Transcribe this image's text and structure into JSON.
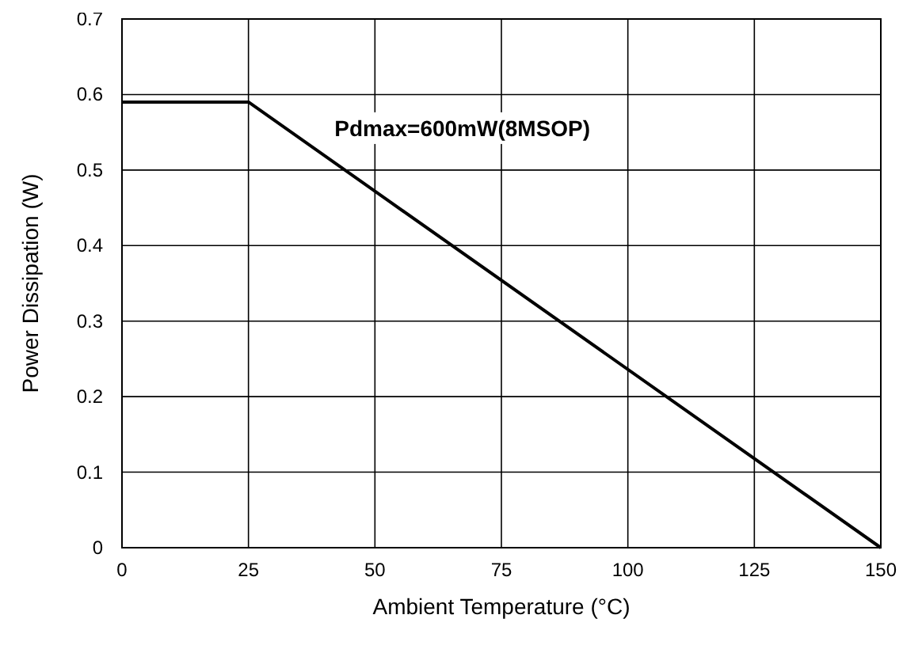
{
  "chart_data": {
    "type": "line",
    "xlabel": "Ambient Temperature (°C)",
    "ylabel": "Power Dissipation (W)",
    "x": [
      0,
      25,
      150
    ],
    "series": [
      {
        "color": "#000000",
        "values": [
          0.59,
          0.59,
          0
        ]
      }
    ],
    "xlim": [
      0,
      150
    ],
    "ylim": [
      0,
      0.7
    ],
    "xticks": [
      0,
      25,
      50,
      75,
      100,
      125,
      150
    ],
    "yticks": [
      0,
      0.1,
      0.2,
      0.3,
      0.4,
      0.5,
      0.6,
      0.7
    ],
    "grid": true,
    "annotations": [
      "Pdmax=600mW(8MSOP)"
    ]
  }
}
